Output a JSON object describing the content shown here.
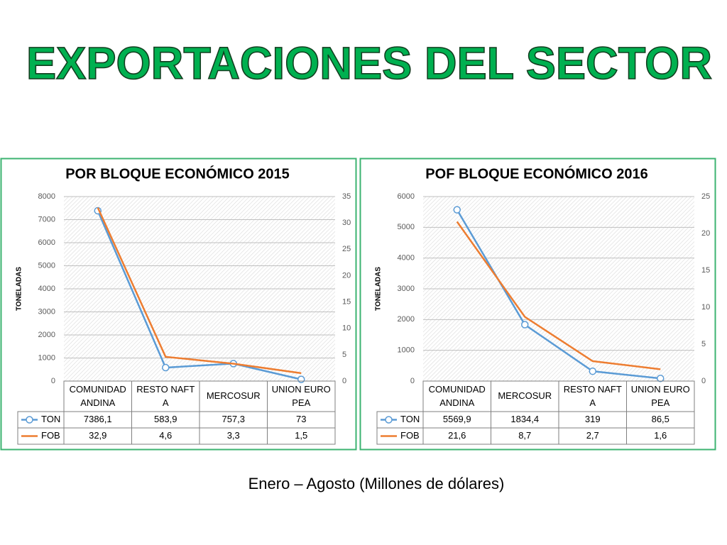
{
  "title": "EXPORTACIONES DEL SECTOR",
  "chart_data": [
    {
      "type": "line",
      "title": "POR BLOQUE ECONÓMICO 2015",
      "y_label": "TONELADAS",
      "categories": [
        "COMUNIDAD ANDINA",
        "RESTO NAFTA",
        "MERCOSUR",
        "UNION EUROPEA"
      ],
      "series": [
        {
          "name": "TON",
          "color": "#5b9bd5",
          "values": [
            7386.1,
            583.9,
            757.3,
            73
          ],
          "value_labels": [
            "7386,1",
            "583,9",
            "757,3",
            "73"
          ]
        },
        {
          "name": "FOB",
          "color": "#ed7d31",
          "axis": "y2",
          "values": [
            32.9,
            4.6,
            3.3,
            1.5
          ],
          "value_labels": [
            "32,9",
            "4,6",
            "3,3",
            "1,5"
          ]
        }
      ],
      "ylim": [
        0,
        8000
      ],
      "yticks": [
        0,
        1000,
        2000,
        3000,
        4000,
        5000,
        6000,
        7000,
        8000
      ],
      "y2lim": [
        0,
        35
      ],
      "y2ticks": [
        0,
        5,
        10,
        15,
        20,
        25,
        30,
        35
      ],
      "grid": true
    },
    {
      "type": "line",
      "title": "POF BLOQUE ECONÓMICO 2016",
      "y_label": "TONELADAS",
      "categories": [
        "COMUNIDAD ANDINA",
        "MERCOSUR",
        "RESTO NAFTA",
        "UNION EUROPEA"
      ],
      "series": [
        {
          "name": "TON",
          "color": "#5b9bd5",
          "values": [
            5569.9,
            1834.4,
            319,
            86.5
          ],
          "value_labels": [
            "5569,9",
            "1834,4",
            "319",
            "86,5"
          ]
        },
        {
          "name": "FOB",
          "color": "#ed7d31",
          "axis": "y2",
          "values": [
            21.6,
            8.7,
            2.7,
            1.6
          ],
          "value_labels": [
            "21,6",
            "8,7",
            "2,7",
            "1,6"
          ]
        }
      ],
      "ylim": [
        0,
        6000
      ],
      "yticks": [
        0,
        1000,
        2000,
        3000,
        4000,
        5000,
        6000
      ],
      "y2lim": [
        0,
        25
      ],
      "y2ticks": [
        0,
        5,
        10,
        15,
        20,
        25
      ],
      "grid": true
    }
  ],
  "footer": "Enero – Agosto (Millones de dólares)"
}
